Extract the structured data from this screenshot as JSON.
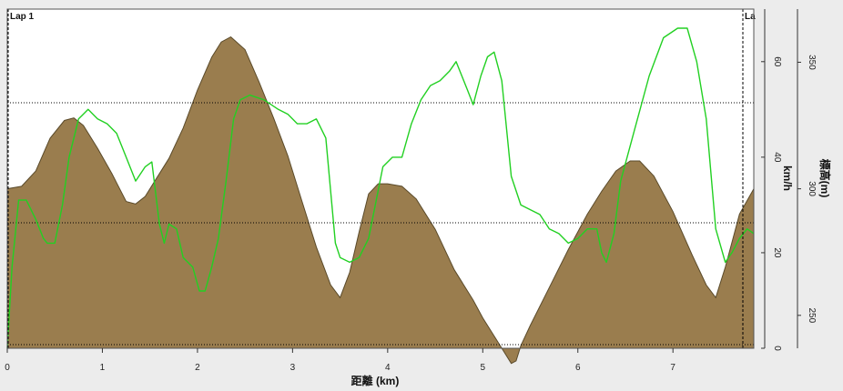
{
  "chart_data": {
    "type": "area",
    "xlabel": "距離 (km)",
    "xlim": [
      0,
      7.85
    ],
    "x_ticks": [
      "0",
      "1",
      "2",
      "3",
      "4",
      "5",
      "6",
      "7"
    ],
    "laps": [
      "Lap 1",
      "La"
    ],
    "lap_markers_km": [
      0,
      7.85
    ],
    "grid": "two dotted horizontal reference lines",
    "series": [
      {
        "name": "標高(m)",
        "type": "area",
        "color": "#9a7d4e",
        "axis": "right",
        "ylabel": "標高(m)",
        "ylim": [
          237,
          371
        ],
        "y_ticks": [
          250,
          300,
          350
        ],
        "x": [
          0,
          0.15,
          0.3,
          0.45,
          0.6,
          0.7,
          0.8,
          0.95,
          1.1,
          1.25,
          1.35,
          1.45,
          1.55,
          1.7,
          1.85,
          2.0,
          2.15,
          2.25,
          2.35,
          2.5,
          2.65,
          2.8,
          2.95,
          3.1,
          3.25,
          3.4,
          3.5,
          3.6,
          3.7,
          3.8,
          3.9,
          4.0,
          4.15,
          4.3,
          4.5,
          4.7,
          4.9,
          5.0,
          5.15,
          5.3,
          5.35,
          5.4,
          5.5,
          5.7,
          5.9,
          6.1,
          6.25,
          6.4,
          6.55,
          6.65,
          6.8,
          7.0,
          7.2,
          7.35,
          7.45,
          7.55,
          7.7,
          7.85
        ],
        "y": [
          300,
          301,
          307,
          320,
          327,
          328,
          325,
          316,
          306,
          295,
          294,
          297,
          303,
          312,
          324,
          339,
          352,
          358,
          360,
          355,
          342,
          328,
          313,
          295,
          277,
          262,
          257,
          267,
          283,
          298,
          302,
          302,
          301,
          296,
          284,
          268,
          256,
          249,
          240,
          231,
          232,
          238,
          246,
          261,
          276,
          290,
          299,
          307,
          311,
          311,
          305,
          291,
          274,
          262,
          257,
          269,
          290,
          300
        ]
      },
      {
        "name": "km/h",
        "type": "line",
        "color": "#22d022",
        "axis": "inner",
        "ylabel": "km/h",
        "ylim": [
          0,
          71
        ],
        "y_ticks": [
          0,
          20,
          40,
          60
        ],
        "x": [
          0,
          0.05,
          0.12,
          0.2,
          0.3,
          0.38,
          0.42,
          0.5,
          0.58,
          0.65,
          0.75,
          0.85,
          0.95,
          1.05,
          1.15,
          1.25,
          1.35,
          1.45,
          1.52,
          1.6,
          1.65,
          1.7,
          1.78,
          1.85,
          1.95,
          2.02,
          2.08,
          2.15,
          2.22,
          2.3,
          2.38,
          2.45,
          2.55,
          2.7,
          2.85,
          2.95,
          3.05,
          3.15,
          3.25,
          3.35,
          3.45,
          3.5,
          3.6,
          3.7,
          3.8,
          3.88,
          3.95,
          4.05,
          4.15,
          4.25,
          4.35,
          4.45,
          4.55,
          4.65,
          4.72,
          4.78,
          4.84,
          4.9,
          4.98,
          5.05,
          5.12,
          5.2,
          5.3,
          5.4,
          5.5,
          5.6,
          5.7,
          5.8,
          5.9,
          6.0,
          6.1,
          6.2,
          6.25,
          6.3,
          6.38,
          6.45,
          6.6,
          6.75,
          6.9,
          7.05,
          7.15,
          7.25,
          7.35,
          7.45,
          7.55,
          7.62,
          7.7,
          7.78,
          7.85
        ],
        "y": [
          0,
          17,
          31,
          31,
          27,
          23,
          22,
          22,
          30,
          40,
          48,
          50,
          48,
          47,
          45,
          40,
          35,
          38,
          39,
          26,
          22,
          26,
          25,
          19,
          17,
          12,
          12,
          17,
          23,
          35,
          48,
          52,
          53,
          52,
          50,
          49,
          47,
          47,
          48,
          44,
          22,
          19,
          18,
          19,
          23,
          31,
          38,
          40,
          40,
          47,
          52,
          55,
          56,
          58,
          60,
          57,
          54,
          51,
          57,
          61,
          62,
          56,
          36,
          30,
          29,
          28,
          25,
          24,
          22,
          23,
          25,
          25,
          20,
          18,
          24,
          35,
          46,
          57,
          65,
          67,
          67,
          60,
          48,
          25,
          18,
          20,
          23,
          25,
          24
        ]
      }
    ]
  }
}
